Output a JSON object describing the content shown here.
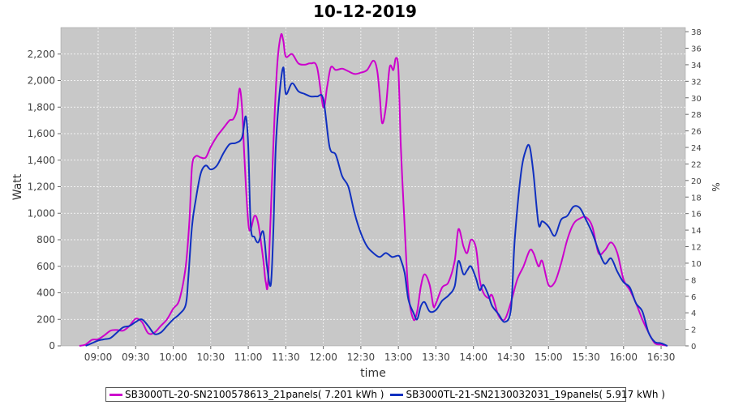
{
  "chart_data": {
    "type": "line",
    "title": "10-12-2019",
    "xlabel": "time",
    "ylabel": "Watt",
    "ylabel_right": "%",
    "x_ticks": [
      "09:00",
      "09:30",
      "10:00",
      "10:30",
      "11:00",
      "11:30",
      "12:00",
      "12:30",
      "13:00",
      "13:30",
      "14:00",
      "14:30",
      "15:00",
      "15:30",
      "16:00",
      "16:30"
    ],
    "y_ticks": [
      "0",
      "200",
      "400",
      "600",
      "800",
      "1,000",
      "1,200",
      "1,400",
      "1,600",
      "1,800",
      "2,000",
      "2,200"
    ],
    "y2_ticks": [
      "0",
      "2",
      "4",
      "6",
      "8",
      "10",
      "12",
      "14",
      "16",
      "18",
      "20",
      "22",
      "24",
      "26",
      "28",
      "30",
      "32",
      "34",
      "36",
      "38"
    ],
    "ylim": [
      0,
      2400
    ],
    "y2lim": [
      0,
      38.5
    ],
    "grid": true,
    "legend_position": "bottom",
    "series": [
      {
        "name": "SB3000TL-20-SN2100578613_21panels( 7.201 kWh )",
        "color": "#cc00cc",
        "points": [
          [
            "08:45",
            0
          ],
          [
            "08:50",
            10
          ],
          [
            "08:55",
            45
          ],
          [
            "09:00",
            50
          ],
          [
            "09:05",
            80
          ],
          [
            "09:10",
            115
          ],
          [
            "09:15",
            120
          ],
          [
            "09:20",
            115
          ],
          [
            "09:25",
            150
          ],
          [
            "09:30",
            205
          ],
          [
            "09:35",
            180
          ],
          [
            "09:40",
            95
          ],
          [
            "09:45",
            100
          ],
          [
            "09:50",
            150
          ],
          [
            "09:55",
            200
          ],
          [
            "10:00",
            280
          ],
          [
            "10:05",
            350
          ],
          [
            "10:10",
            600
          ],
          [
            "10:13",
            950
          ],
          [
            "10:15",
            1350
          ],
          [
            "10:18",
            1430
          ],
          [
            "10:22",
            1420
          ],
          [
            "10:26",
            1420
          ],
          [
            "10:30",
            1500
          ],
          [
            "10:35",
            1580
          ],
          [
            "10:40",
            1640
          ],
          [
            "10:45",
            1700
          ],
          [
            "10:48",
            1710
          ],
          [
            "10:51",
            1780
          ],
          [
            "10:53",
            1940
          ],
          [
            "10:55",
            1800
          ],
          [
            "10:57",
            1400
          ],
          [
            "11:00",
            930
          ],
          [
            "11:02",
            880
          ],
          [
            "11:05",
            980
          ],
          [
            "11:08",
            920
          ],
          [
            "11:12",
            650
          ],
          [
            "11:14",
            480
          ],
          [
            "11:16",
            520
          ],
          [
            "11:20",
            1500
          ],
          [
            "11:23",
            2100
          ],
          [
            "11:26",
            2340
          ],
          [
            "11:28",
            2300
          ],
          [
            "11:30",
            2180
          ],
          [
            "11:35",
            2200
          ],
          [
            "11:40",
            2130
          ],
          [
            "11:45",
            2120
          ],
          [
            "11:50",
            2130
          ],
          [
            "11:55",
            2100
          ],
          [
            "12:00",
            1800
          ],
          [
            "12:03",
            1950
          ],
          [
            "12:06",
            2100
          ],
          [
            "12:10",
            2080
          ],
          [
            "12:15",
            2090
          ],
          [
            "12:20",
            2070
          ],
          [
            "12:25",
            2050
          ],
          [
            "12:30",
            2060
          ],
          [
            "12:35",
            2080
          ],
          [
            "12:40",
            2150
          ],
          [
            "12:43",
            2080
          ],
          [
            "12:45",
            1900
          ],
          [
            "12:47",
            1680
          ],
          [
            "12:50",
            1800
          ],
          [
            "12:53",
            2100
          ],
          [
            "12:56",
            2080
          ],
          [
            "12:58",
            2170
          ],
          [
            "13:00",
            2080
          ],
          [
            "13:02",
            1500
          ],
          [
            "13:05",
            900
          ],
          [
            "13:08",
            400
          ],
          [
            "13:12",
            200
          ],
          [
            "13:15",
            260
          ],
          [
            "13:18",
            450
          ],
          [
            "13:21",
            540
          ],
          [
            "13:25",
            460
          ],
          [
            "13:28",
            300
          ],
          [
            "13:30",
            320
          ],
          [
            "13:35",
            440
          ],
          [
            "13:40",
            480
          ],
          [
            "13:45",
            640
          ],
          [
            "13:48",
            880
          ],
          [
            "13:52",
            750
          ],
          [
            "13:55",
            700
          ],
          [
            "13:58",
            800
          ],
          [
            "14:02",
            740
          ],
          [
            "14:05",
            500
          ],
          [
            "14:08",
            400
          ],
          [
            "14:12",
            360
          ],
          [
            "14:15",
            380
          ],
          [
            "14:20",
            230
          ],
          [
            "14:25",
            200
          ],
          [
            "14:30",
            330
          ],
          [
            "14:35",
            500
          ],
          [
            "14:40",
            600
          ],
          [
            "14:45",
            720
          ],
          [
            "14:48",
            700
          ],
          [
            "14:52",
            600
          ],
          [
            "14:55",
            640
          ],
          [
            "15:00",
            460
          ],
          [
            "15:05",
            480
          ],
          [
            "15:10",
            620
          ],
          [
            "15:15",
            800
          ],
          [
            "15:20",
            920
          ],
          [
            "15:25",
            960
          ],
          [
            "15:30",
            970
          ],
          [
            "15:35",
            900
          ],
          [
            "15:40",
            700
          ],
          [
            "15:45",
            720
          ],
          [
            "15:50",
            780
          ],
          [
            "15:55",
            700
          ],
          [
            "16:00",
            500
          ],
          [
            "16:05",
            420
          ],
          [
            "16:10",
            320
          ],
          [
            "16:15",
            200
          ],
          [
            "16:20",
            100
          ],
          [
            "16:25",
            20
          ],
          [
            "16:30",
            10
          ],
          [
            "16:35",
            0
          ]
        ]
      },
      {
        "name": "SB3000TL-21-SN2130032031_19panels( 5.917 kWh )",
        "color": "#1030c0",
        "points": [
          [
            "08:50",
            0
          ],
          [
            "08:55",
            20
          ],
          [
            "09:00",
            40
          ],
          [
            "09:05",
            50
          ],
          [
            "09:10",
            60
          ],
          [
            "09:15",
            100
          ],
          [
            "09:20",
            140
          ],
          [
            "09:25",
            150
          ],
          [
            "09:30",
            180
          ],
          [
            "09:35",
            200
          ],
          [
            "09:40",
            150
          ],
          [
            "09:45",
            90
          ],
          [
            "09:50",
            100
          ],
          [
            "09:55",
            150
          ],
          [
            "10:00",
            200
          ],
          [
            "10:05",
            240
          ],
          [
            "10:10",
            310
          ],
          [
            "10:12",
            500
          ],
          [
            "10:15",
            900
          ],
          [
            "10:18",
            1100
          ],
          [
            "10:22",
            1300
          ],
          [
            "10:26",
            1360
          ],
          [
            "10:30",
            1330
          ],
          [
            "10:35",
            1360
          ],
          [
            "10:40",
            1450
          ],
          [
            "10:45",
            1520
          ],
          [
            "10:50",
            1530
          ],
          [
            "10:55",
            1570
          ],
          [
            "10:58",
            1730
          ],
          [
            "11:00",
            1500
          ],
          [
            "11:02",
            900
          ],
          [
            "11:05",
            820
          ],
          [
            "11:08",
            780
          ],
          [
            "11:12",
            860
          ],
          [
            "11:15",
            600
          ],
          [
            "11:18",
            460
          ],
          [
            "11:20",
            850
          ],
          [
            "11:22",
            1500
          ],
          [
            "11:25",
            1900
          ],
          [
            "11:28",
            2100
          ],
          [
            "11:30",
            1900
          ],
          [
            "11:35",
            1980
          ],
          [
            "11:40",
            1920
          ],
          [
            "11:45",
            1900
          ],
          [
            "11:50",
            1880
          ],
          [
            "11:55",
            1880
          ],
          [
            "12:00",
            1860
          ],
          [
            "12:05",
            1500
          ],
          [
            "12:10",
            1440
          ],
          [
            "12:15",
            1280
          ],
          [
            "12:20",
            1200
          ],
          [
            "12:25",
            1000
          ],
          [
            "12:30",
            850
          ],
          [
            "12:35",
            750
          ],
          [
            "12:40",
            700
          ],
          [
            "12:45",
            670
          ],
          [
            "12:50",
            700
          ],
          [
            "12:55",
            670
          ],
          [
            "13:00",
            680
          ],
          [
            "13:02",
            650
          ],
          [
            "13:05",
            550
          ],
          [
            "13:08",
            350
          ],
          [
            "13:12",
            250
          ],
          [
            "13:15",
            200
          ],
          [
            "13:18",
            300
          ],
          [
            "13:21",
            330
          ],
          [
            "13:25",
            260
          ],
          [
            "13:30",
            270
          ],
          [
            "13:35",
            340
          ],
          [
            "13:40",
            380
          ],
          [
            "13:45",
            450
          ],
          [
            "13:48",
            640
          ],
          [
            "13:52",
            540
          ],
          [
            "13:55",
            570
          ],
          [
            "13:58",
            600
          ],
          [
            "14:02",
            510
          ],
          [
            "14:05",
            420
          ],
          [
            "14:08",
            460
          ],
          [
            "14:12",
            380
          ],
          [
            "14:15",
            300
          ],
          [
            "14:20",
            240
          ],
          [
            "14:25",
            180
          ],
          [
            "14:30",
            280
          ],
          [
            "14:33",
            800
          ],
          [
            "14:38",
            1300
          ],
          [
            "14:42",
            1480
          ],
          [
            "14:45",
            1500
          ],
          [
            "14:48",
            1300
          ],
          [
            "14:52",
            920
          ],
          [
            "14:55",
            940
          ],
          [
            "15:00",
            900
          ],
          [
            "15:05",
            830
          ],
          [
            "15:10",
            950
          ],
          [
            "15:15",
            980
          ],
          [
            "15:20",
            1050
          ],
          [
            "15:25",
            1040
          ],
          [
            "15:30",
            950
          ],
          [
            "15:35",
            850
          ],
          [
            "15:40",
            720
          ],
          [
            "15:45",
            620
          ],
          [
            "15:50",
            660
          ],
          [
            "15:55",
            560
          ],
          [
            "16:00",
            480
          ],
          [
            "16:05",
            440
          ],
          [
            "16:10",
            320
          ],
          [
            "16:15",
            260
          ],
          [
            "16:20",
            100
          ],
          [
            "16:25",
            30
          ],
          [
            "16:30",
            20
          ],
          [
            "16:35",
            0
          ]
        ]
      }
    ]
  }
}
